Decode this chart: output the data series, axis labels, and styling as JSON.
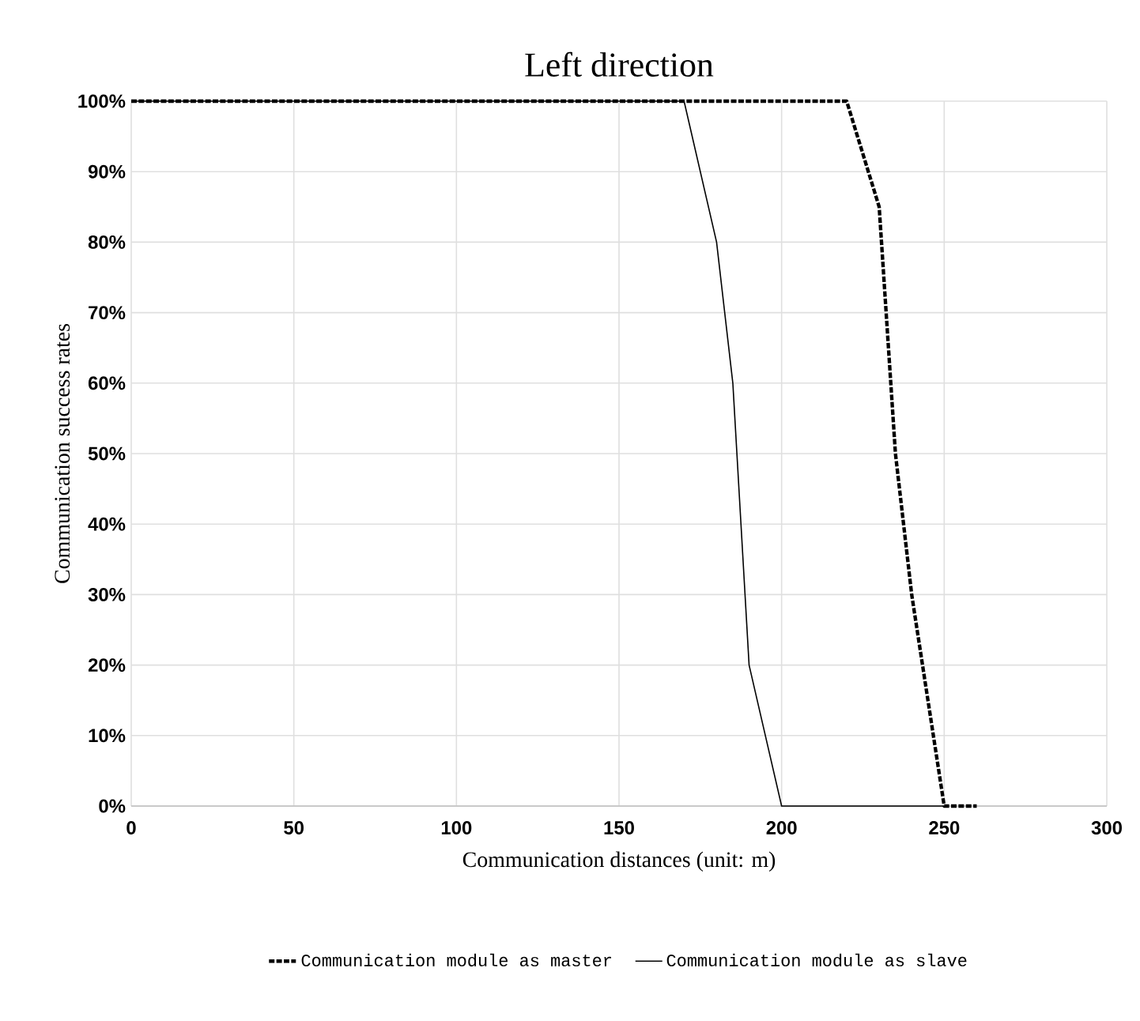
{
  "chart_data": {
    "type": "line",
    "title": "Left direction",
    "xlabel": "Communication distances (unit: m)",
    "ylabel": "Communication success rates",
    "xlim": [
      0,
      300
    ],
    "xticks": [
      0,
      50,
      100,
      150,
      200,
      250,
      300
    ],
    "ylim": [
      0,
      100
    ],
    "yticks": [
      {
        "value": 0,
        "label": "0%"
      },
      {
        "value": 10,
        "label": "10%"
      },
      {
        "value": 20,
        "label": "20%"
      },
      {
        "value": 30,
        "label": "30%"
      },
      {
        "value": 40,
        "label": "40%"
      },
      {
        "value": 50,
        "label": "50%"
      },
      {
        "value": 60,
        "label": "60%"
      },
      {
        "value": 70,
        "label": "70%"
      },
      {
        "value": 80,
        "label": "80%"
      },
      {
        "value": 90,
        "label": "90%"
      },
      {
        "value": 100,
        "label": "100%"
      }
    ],
    "grid": true,
    "legend": "bottom",
    "marker": "none",
    "series": [
      {
        "name": "Communication module as master",
        "color": "#000000",
        "line_style": "dashed",
        "x": [
          0,
          220,
          230,
          235,
          240,
          250,
          260
        ],
        "values": [
          100,
          100,
          85,
          50,
          30,
          0,
          0
        ]
      },
      {
        "name": "Communication module as slave",
        "color": "#000000",
        "line_style": "solid",
        "x": [
          0,
          170,
          180,
          185,
          190,
          200,
          250
        ],
        "values": [
          100,
          100,
          80,
          60,
          20,
          0,
          0
        ]
      }
    ]
  }
}
